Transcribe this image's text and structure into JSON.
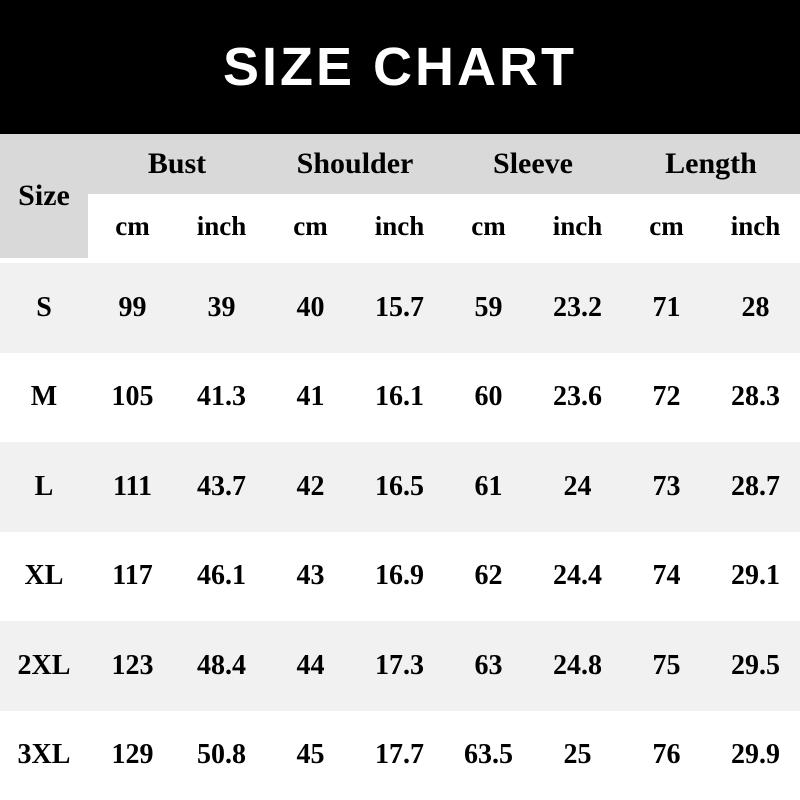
{
  "title": "SIZE CHART",
  "colors": {
    "banner_bg": "#000000",
    "banner_text": "#ffffff",
    "group_header_bg": "#d9d9d9",
    "row_band_bg": "#f1f1f1",
    "row_plain_bg": "#ffffff",
    "table_text": "#000000"
  },
  "table": {
    "corner_label": "Size",
    "groups": [
      {
        "label": "Bust"
      },
      {
        "label": "Shoulder"
      },
      {
        "label": "Sleeve"
      },
      {
        "label": "Length"
      }
    ],
    "unit_headers": [
      "cm",
      "inch",
      "cm",
      "inch",
      "cm",
      "inch",
      "cm",
      "inch"
    ],
    "rows": [
      {
        "size": "S",
        "values": [
          "99",
          "39",
          "40",
          "15.7",
          "59",
          "23.2",
          "71",
          "28"
        ]
      },
      {
        "size": "M",
        "values": [
          "105",
          "41.3",
          "41",
          "16.1",
          "60",
          "23.6",
          "72",
          "28.3"
        ]
      },
      {
        "size": "L",
        "values": [
          "111",
          "43.7",
          "42",
          "16.5",
          "61",
          "24",
          "73",
          "28.7"
        ]
      },
      {
        "size": "XL",
        "values": [
          "117",
          "46.1",
          "43",
          "16.9",
          "62",
          "24.4",
          "74",
          "29.1"
        ]
      },
      {
        "size": "2XL",
        "values": [
          "123",
          "48.4",
          "44",
          "17.3",
          "63",
          "24.8",
          "75",
          "29.5"
        ]
      },
      {
        "size": "3XL",
        "values": [
          "129",
          "50.8",
          "45",
          "17.7",
          "63.5",
          "25",
          "76",
          "29.9"
        ]
      }
    ]
  },
  "chart_data": {
    "type": "table",
    "title": "SIZE CHART",
    "columns": [
      "Size",
      "Bust cm",
      "Bust inch",
      "Shoulder cm",
      "Shoulder inch",
      "Sleeve cm",
      "Sleeve inch",
      "Length cm",
      "Length inch"
    ],
    "rows": [
      [
        "S",
        99,
        39,
        40,
        15.7,
        59,
        23.2,
        71,
        28
      ],
      [
        "M",
        105,
        41.3,
        41,
        16.1,
        60,
        23.6,
        72,
        28.3
      ],
      [
        "L",
        111,
        43.7,
        42,
        16.5,
        61,
        24,
        73,
        28.7
      ],
      [
        "XL",
        117,
        46.1,
        43,
        16.9,
        62,
        24.4,
        74,
        29.1
      ],
      [
        "2XL",
        123,
        48.4,
        44,
        17.3,
        63,
        24.8,
        75,
        29.5
      ],
      [
        "3XL",
        129,
        50.8,
        45,
        17.7,
        63.5,
        25,
        76,
        29.9
      ]
    ],
    "legend_position": "none",
    "grid": false
  }
}
